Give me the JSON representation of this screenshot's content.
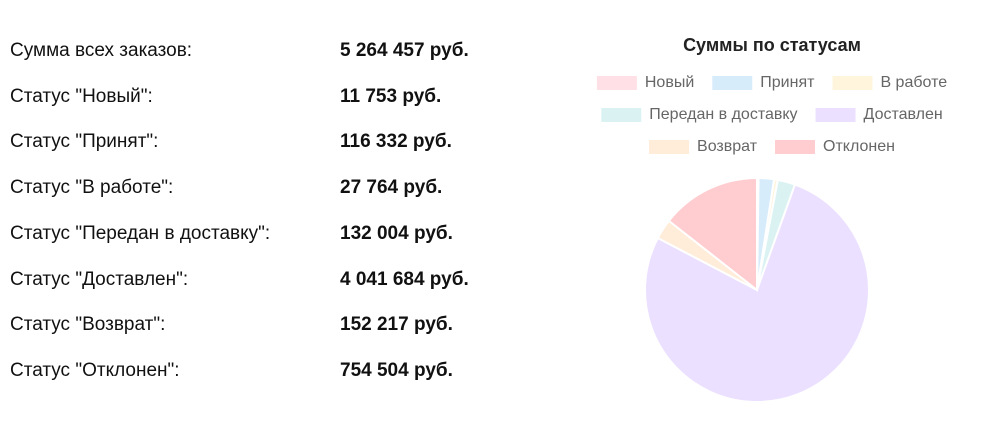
{
  "table": {
    "rows": [
      {
        "label": "Сумма всех заказов:",
        "value": "5 264 457 руб."
      },
      {
        "label": "Статус \"Новый\":",
        "value": "11 753 руб."
      },
      {
        "label": "Статус \"Принят\":",
        "value": "116 332 руб."
      },
      {
        "label": "Статус \"В работе\":",
        "value": "27 764 руб."
      },
      {
        "label": "Статус \"Передан в доставку\":",
        "value": "132 004 руб."
      },
      {
        "label": "Статус \"Доставлен\":",
        "value": "4 041 684 руб."
      },
      {
        "label": "Статус \"Возврат\":",
        "value": "152 217 руб."
      },
      {
        "label": "Статус \"Отклонен\":",
        "value": "754 504 руб."
      }
    ]
  },
  "chart_data": {
    "type": "pie",
    "title": "Суммы по статусам",
    "categories": [
      "Новый",
      "Принят",
      "В работе",
      "Передан в доставку",
      "Доставлен",
      "Возврат",
      "Отклонен"
    ],
    "values": [
      11753,
      116332,
      27764,
      132004,
      4041684,
      152217,
      754504
    ],
    "colors": [
      "#ffe0e6",
      "#d7ecfb",
      "#fff5dd",
      "#dbf2f2",
      "#ebe0ff",
      "#ffecd9",
      "#ffcdd0"
    ],
    "legend": "top"
  }
}
